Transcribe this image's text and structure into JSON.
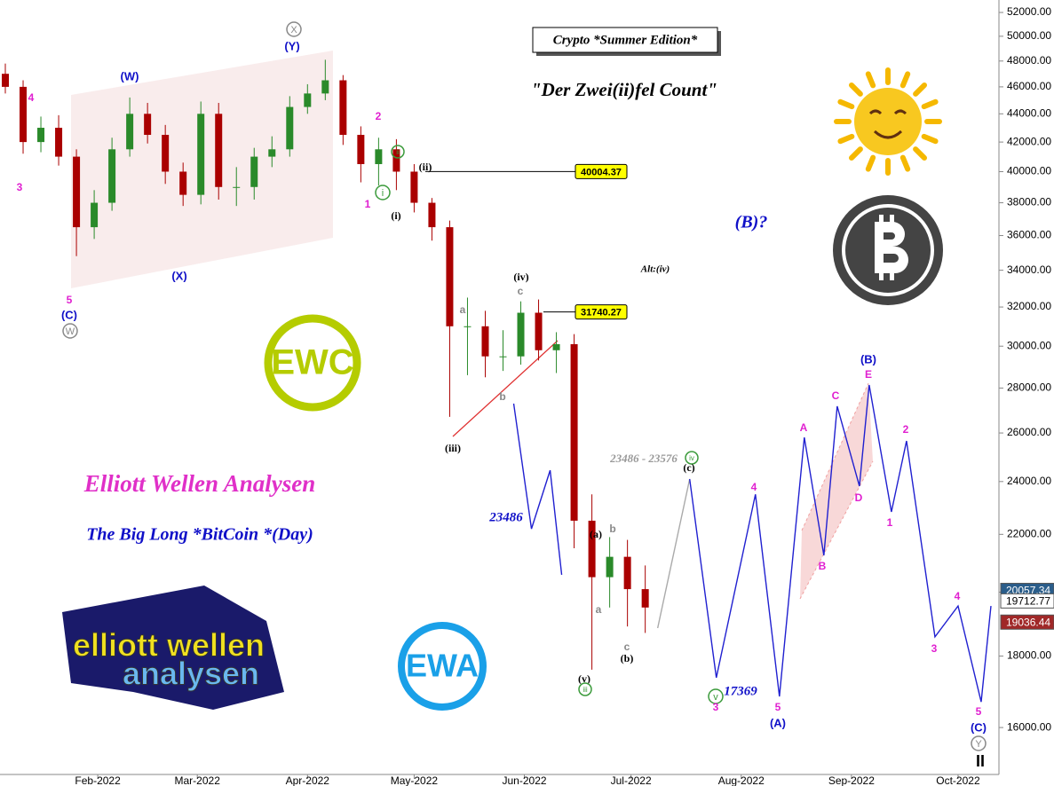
{
  "chart_data": {
    "type": "candlestick",
    "log_scale": true,
    "ylim": [
      14530,
      53080
    ],
    "xlim": [
      3.5,
      284.5
    ],
    "yticks": [
      {
        "value": 16000,
        "label": "16000.00"
      },
      {
        "value": 18000,
        "label": "18000.00"
      },
      {
        "value": 20000,
        "label": "20000.00"
      },
      {
        "value": 22000,
        "label": "22000.00"
      },
      {
        "value": 24000,
        "label": "24000.00"
      },
      {
        "value": 26000,
        "label": "26000.00"
      },
      {
        "value": 28000,
        "label": "28000.00"
      },
      {
        "value": 30000,
        "label": "30000.00"
      },
      {
        "value": 32000,
        "label": "32000.00"
      },
      {
        "value": 34000,
        "label": "34000.00"
      },
      {
        "value": 36000,
        "label": "36000.00"
      },
      {
        "value": 38000,
        "label": "38000.00"
      },
      {
        "value": 40000,
        "label": "40000.00"
      },
      {
        "value": 42000,
        "label": "42000.00"
      },
      {
        "value": 44000,
        "label": "44000.00"
      },
      {
        "value": 46000,
        "label": "46000.00"
      },
      {
        "value": 48000,
        "label": "48000.00"
      },
      {
        "value": 50000,
        "label": "50000.00"
      },
      {
        "value": 52000,
        "label": "52000.00"
      }
    ],
    "xticks": [
      {
        "value": 31,
        "label": "Feb-2022"
      },
      {
        "value": 59,
        "label": "Mar-2022"
      },
      {
        "value": 90,
        "label": "Apr-2022"
      },
      {
        "value": 120,
        "label": "May-2022"
      },
      {
        "value": 151,
        "label": "Jun-2022"
      },
      {
        "value": 181,
        "label": "Jul-2022"
      },
      {
        "value": 212,
        "label": "Aug-2022"
      },
      {
        "value": 243,
        "label": "Sep-2022"
      },
      {
        "value": 273,
        "label": "Oct-2022"
      }
    ],
    "up_color": "#2a8a2a",
    "down_color": "#aa0000",
    "candles": {
      "x": [
        5,
        10,
        15,
        20,
        25,
        30,
        35,
        40,
        45,
        50,
        55,
        60,
        65,
        70,
        75,
        80,
        85,
        90,
        95,
        100,
        105,
        110,
        115,
        120,
        125,
        130,
        135,
        140,
        145,
        150,
        155,
        160,
        165,
        170,
        175,
        180,
        185
      ],
      "open": [
        47000,
        46000,
        42000,
        43000,
        41000,
        36500,
        38000,
        41500,
        44000,
        42500,
        40000,
        38500,
        44000,
        39000,
        39000,
        41000,
        41500,
        44500,
        45500,
        46500,
        42500,
        40500,
        41500,
        40000,
        38000,
        36500,
        31000,
        31000,
        29500,
        29500,
        31700,
        29800,
        30100,
        22500,
        20500,
        21200,
        20100
      ],
      "high": [
        47800,
        46500,
        43800,
        43900,
        41500,
        38800,
        42300,
        45200,
        44800,
        43200,
        40600,
        44900,
        44800,
        40300,
        41600,
        42400,
        45300,
        46200,
        48100,
        46900,
        43100,
        42300,
        42200,
        40500,
        38300,
        36900,
        32500,
        31800,
        30800,
        32300,
        32400,
        30700,
        30600,
        23500,
        21900,
        21800,
        20900
      ],
      "low": [
        45500,
        41200,
        41300,
        40400,
        34800,
        35800,
        37500,
        41000,
        41900,
        39200,
        37800,
        37900,
        38200,
        37800,
        38200,
        40300,
        41000,
        44000,
        45000,
        41800,
        39300,
        39100,
        38800,
        37400,
        35700,
        26700,
        28600,
        28500,
        28800,
        29100,
        29300,
        28700,
        21500,
        17600,
        19500,
        18900,
        18700
      ],
      "close": [
        46000,
        42000,
        43000,
        41000,
        36500,
        38000,
        41500,
        44000,
        42500,
        40000,
        38500,
        44000,
        39000,
        39000,
        41000,
        41500,
        44500,
        45500,
        46500,
        42500,
        40500,
        41500,
        40000,
        38000,
        36500,
        31000,
        31000,
        29500,
        29500,
        31700,
        29800,
        30100,
        22500,
        20500,
        21200,
        20100,
        19500
      ]
    },
    "projections": [
      {
        "color": "#2020d0",
        "x": [
          148,
          153,
          158.25,
          161.5
        ],
        "values": [
          27290,
          22200,
          24450,
          20580
        ]
      },
      {
        "color": "#aaaaaa",
        "x": [
          188.5,
          197.5
        ],
        "values": [
          18850,
          24100
        ]
      },
      {
        "color": "#2020d0",
        "x": [
          197.5,
          205,
          216,
          222.75,
          229.75,
          235.25,
          239,
          245.25,
          248,
          254.25,
          258.5,
          266.5,
          273,
          279.5,
          282.25
        ],
        "values": [
          24100,
          17370,
          23500,
          16840,
          25810,
          21250,
          27170,
          23820,
          28140,
          22830,
          25660,
          18580,
          19550,
          16690,
          19550
        ]
      }
    ],
    "levels": [
      40004.37,
      31740.27
    ],
    "last_prices": [
      20057.34,
      19712.77,
      19036.44
    ],
    "last_price_colors": [
      "#2a5d8a",
      "#ffffff",
      "#a02828"
    ],
    "texts": {
      "edition": "Crypto *Summer Edition*",
      "count": "\"Der Zwei(ii)fel Count\"",
      "b_question": "(B)?",
      "alt": "Alt:(iv)",
      "brand": "Elliott Wellen Analysen",
      "subtitle": "The Big Long *BitCoin *(Day)",
      "range": "23486 - 23576"
    },
    "targets": [
      23486,
      17369
    ],
    "logos": {
      "ewc": "EWC",
      "ewa": "EWA",
      "brand_top": "elliott wellen",
      "brand_bottom": "analysen"
    },
    "wave_labels": [
      {
        "text": "3",
        "color": "#e020d0"
      },
      {
        "text": "4",
        "color": "#e020d0"
      },
      {
        "text": "5",
        "color": "#e020d0"
      },
      {
        "text": "(C)",
        "color": "#1010c8"
      },
      {
        "text": "W",
        "color": "#888888",
        "circled": true
      },
      {
        "text": "(W)",
        "color": "#1010c8"
      },
      {
        "text": "(X)",
        "color": "#1010c8"
      },
      {
        "text": "X",
        "color": "#888888",
        "circled": true
      },
      {
        "text": "(Y)",
        "color": "#1010c8"
      },
      {
        "text": "2",
        "color": "#e020d0"
      },
      {
        "text": "1",
        "color": "#e020d0"
      },
      {
        "text": "ii",
        "color": "#3a9a3a",
        "circled": true
      },
      {
        "text": "i",
        "color": "#3a9a3a",
        "circled": true
      },
      {
        "text": "(ii)",
        "color": "#000000"
      },
      {
        "text": "(i)",
        "color": "#000000"
      },
      {
        "text": "(iv)",
        "color": "#000000"
      },
      {
        "text": "c",
        "color": "#888888"
      },
      {
        "text": "a",
        "color": "#888888"
      },
      {
        "text": "b",
        "color": "#888888"
      },
      {
        "text": "(iii)",
        "color": "#000000"
      },
      {
        "text": "iv",
        "color": "#3a9a3a",
        "circled": true
      },
      {
        "text": "(c)",
        "color": "#000000"
      },
      {
        "text": "(a)",
        "color": "#000000"
      },
      {
        "text": "b",
        "color": "#888888"
      },
      {
        "text": "a",
        "color": "#888888"
      },
      {
        "text": "c",
        "color": "#888888"
      },
      {
        "text": "(b)",
        "color": "#000000"
      },
      {
        "text": "(v)",
        "color": "#000000"
      },
      {
        "text": "iii",
        "color": "#3a9a3a",
        "circled": true
      },
      {
        "text": "v",
        "color": "#3a9a3a",
        "circled": true
      },
      {
        "text": "3",
        "color": "#e020d0"
      },
      {
        "text": "4",
        "color": "#e020d0"
      },
      {
        "text": "5",
        "color": "#e020d0"
      },
      {
        "text": "(A)",
        "color": "#1010c8"
      },
      {
        "text": "A",
        "color": "#e020d0"
      },
      {
        "text": "B",
        "color": "#e020d0"
      },
      {
        "text": "C",
        "color": "#e020d0"
      },
      {
        "text": "D",
        "color": "#e020d0"
      },
      {
        "text": "(B)",
        "color": "#1010c8"
      },
      {
        "text": "E",
        "color": "#e020d0"
      },
      {
        "text": "2",
        "color": "#e020d0"
      },
      {
        "text": "1",
        "color": "#e020d0"
      },
      {
        "text": "4",
        "color": "#e020d0"
      },
      {
        "text": "3",
        "color": "#e020d0"
      },
      {
        "text": "5",
        "color": "#e020d0"
      },
      {
        "text": "(C)",
        "color": "#1010c8"
      },
      {
        "text": "Y",
        "color": "#888888",
        "circled": true
      },
      {
        "text": "II",
        "color": "#000000"
      }
    ]
  }
}
